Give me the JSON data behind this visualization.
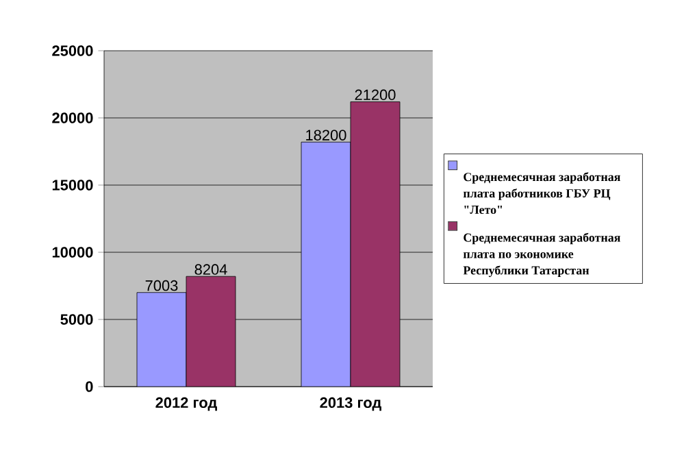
{
  "chart_data": {
    "type": "bar",
    "categories": [
      "2012 год",
      "2013 год"
    ],
    "series": [
      {
        "name": "Среднемесячная заработная плата работников ГБУ РЦ \"Лето\"",
        "color": "#9999ff",
        "values": [
          7003,
          18200
        ]
      },
      {
        "name": "Среднемесячная заработная плата по экономике Республики Татарстан",
        "color": "#993366",
        "values": [
          8204,
          21200
        ]
      }
    ],
    "ylim": [
      0,
      25000
    ],
    "yticks": [
      0,
      5000,
      10000,
      15000,
      20000,
      25000
    ],
    "grid": "y",
    "legend": "right",
    "data_labels": true
  }
}
